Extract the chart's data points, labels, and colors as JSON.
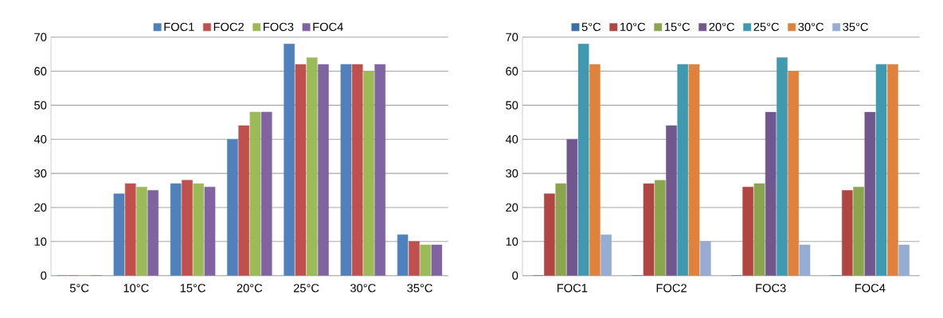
{
  "chart_data": [
    {
      "type": "bar",
      "categories": [
        "5°C",
        "10°C",
        "15°C",
        "20°C",
        "25°C",
        "30°C",
        "35°C"
      ],
      "ylim": [
        0,
        70
      ],
      "yticks": [
        0,
        10,
        20,
        30,
        40,
        50,
        60,
        70
      ],
      "grid": "y",
      "legend": "top",
      "series": [
        {
          "name": "FOC1",
          "color": "#4f81bd",
          "values": [
            0,
            24,
            27,
            40,
            68,
            62,
            12
          ]
        },
        {
          "name": "FOC2",
          "color": "#c0504d",
          "values": [
            0,
            27,
            28,
            44,
            62,
            62,
            10
          ]
        },
        {
          "name": "FOC3",
          "color": "#9bbb59",
          "values": [
            0,
            26,
            27,
            48,
            64,
            60,
            9
          ]
        },
        {
          "name": "FOC4",
          "color": "#8064a2",
          "values": [
            0,
            25,
            26,
            48,
            62,
            62,
            9
          ]
        }
      ]
    },
    {
      "type": "bar",
      "categories": [
        "FOC1",
        "FOC2",
        "FOC3",
        "FOC4"
      ],
      "ylim": [
        0,
        70
      ],
      "yticks": [
        0,
        10,
        20,
        30,
        40,
        50,
        60,
        70
      ],
      "grid": "y",
      "legend": "top",
      "series": [
        {
          "name": "5°C",
          "color": "#3c6da6",
          "values": [
            0,
            0,
            0,
            0
          ]
        },
        {
          "name": "10°C",
          "color": "#b04542",
          "values": [
            24,
            27,
            26,
            25
          ]
        },
        {
          "name": "15°C",
          "color": "#8aa54e",
          "values": [
            27,
            28,
            27,
            26
          ]
        },
        {
          "name": "20°C",
          "color": "#72578f",
          "values": [
            40,
            44,
            48,
            48
          ]
        },
        {
          "name": "25°C",
          "color": "#3f9ab0",
          "values": [
            68,
            62,
            64,
            62
          ]
        },
        {
          "name": "30°C",
          "color": "#e0823b",
          "values": [
            62,
            62,
            60,
            62
          ]
        },
        {
          "name": "35°C",
          "color": "#95acd3",
          "values": [
            12,
            10,
            9,
            9
          ]
        }
      ]
    }
  ]
}
